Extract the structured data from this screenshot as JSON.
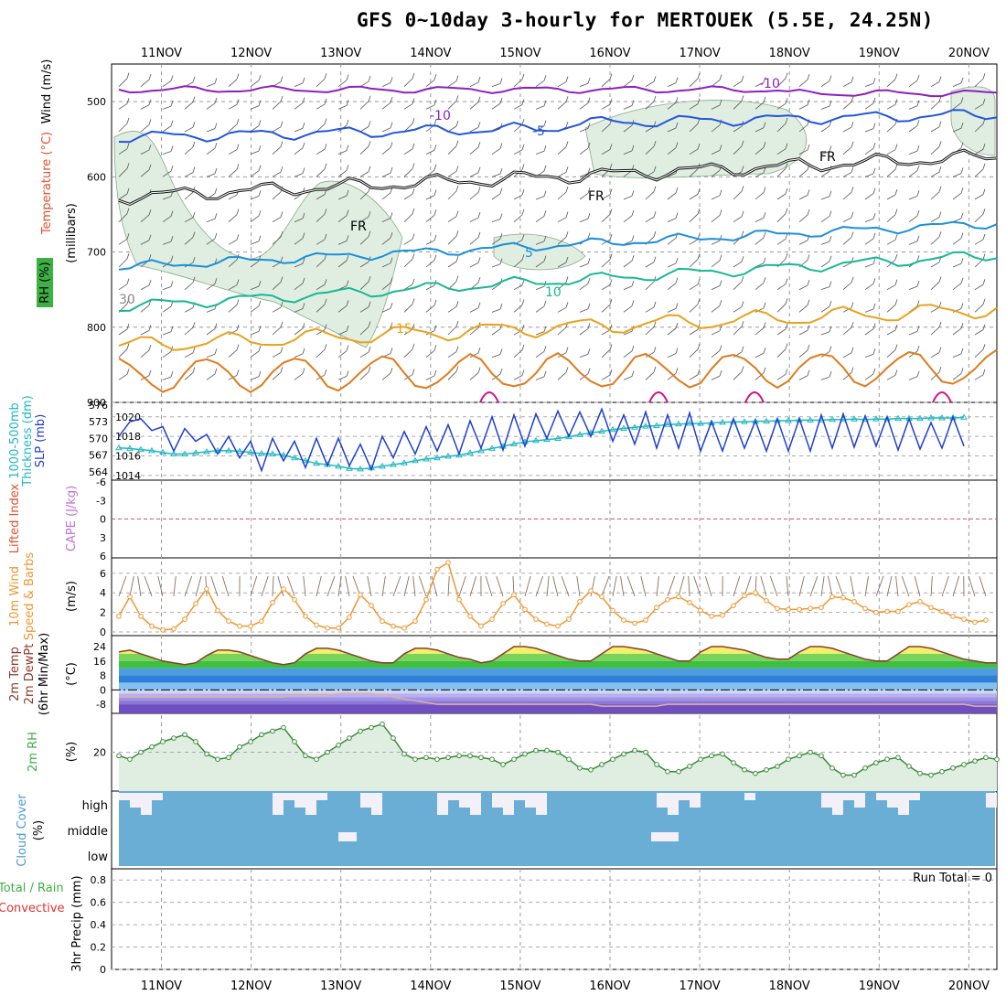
{
  "title": "GFS 0~10day 3-hourly for MERTOUEK (5.5E, 24.25N)",
  "dates": [
    "11NOV",
    "12NOV",
    "13NOV",
    "14NOV",
    "15NOV",
    "16NOV",
    "17NOV",
    "18NOV",
    "19NOV",
    "20NOV"
  ],
  "colors": {
    "purple": "#8c1fc0",
    "blue": "#2255dd",
    "sky": "#1b8fdc",
    "teal": "#16b892",
    "gold": "#e8a21c",
    "orange": "#e07a1a",
    "magenta": "#d1138e",
    "rh_fill": "#dfeee0",
    "slp": "#1f3fcf",
    "thick": "#1fb8c0",
    "wind": "#f0962e",
    "cloud": "#6aaed6"
  },
  "panels": {
    "upper": {
      "label_wind": "Wind (m/s)",
      "label_temp": "Temperature (°C)",
      "label_rh": "RH (%)",
      "label_p": "(millibars)",
      "y_ticks": [
        "500",
        "600",
        "700",
        "800",
        "900"
      ],
      "contour_labels": [
        "-10",
        "-10",
        "-5",
        "-5",
        "FR",
        "FR",
        "FR",
        "5",
        "10",
        "15",
        "30",
        "10"
      ]
    },
    "thick": {
      "label1": "1000-500mb",
      "label2": "Thickness (dm)",
      "label3": "SLP (mb)",
      "left_ticks": [
        "576",
        "573",
        "570",
        "567",
        "564"
      ],
      "right_ticks": [
        "1020",
        "1018",
        "1016",
        "1014"
      ]
    },
    "cape": {
      "label1": "Lifted Index",
      "label2": "CAPE (J/kg)",
      "ticks": [
        "-6",
        "-3",
        "0",
        "3",
        "6"
      ]
    },
    "wind": {
      "label1": "10m Wind",
      "label2": "Speed & Barbs",
      "label3": "(m/s)",
      "ticks": [
        "6",
        "4",
        "2",
        "0"
      ]
    },
    "temp": {
      "label1": "2m Temp",
      "label2": "2m DewPt",
      "label3": "(6hr Min/Max)",
      "label4": "(°C)",
      "ticks": [
        "24",
        "16",
        "8",
        "0",
        "-8"
      ]
    },
    "rh": {
      "label1": "2m RH",
      "label2": "(%)",
      "ticks": [
        "20"
      ]
    },
    "cloud": {
      "label1": "Cloud Cover",
      "label2": "(%)",
      "levels": [
        "high",
        "middle",
        "low"
      ]
    },
    "precip": {
      "label1": "Total / Rain",
      "label2": "Convective",
      "label3": "3hr Precip (mm)",
      "ticks": [
        "0.8",
        "0.6",
        "0.4",
        "0.2",
        "0"
      ],
      "run_total": "Run Total = 0"
    }
  },
  "chart_data": [
    {
      "type": "line",
      "title": "1000-500mb Thickness (dm) and SLP (mb)",
      "series": [
        {
          "name": "SLP (mb)",
          "values": [
            1018.0,
            1019.5,
            1019.8,
            1018.6,
            1019.0,
            1016.5,
            1018.8,
            1017.5,
            1018.2,
            1016.2,
            1018.0,
            1015.8,
            1017.5,
            1014.5,
            1017.8,
            1015.5,
            1017.5,
            1014.8,
            1017.8,
            1015.0,
            1017.8,
            1015.0,
            1017.2,
            1014.6,
            1018.0,
            1015.8,
            1018.5,
            1016.2,
            1019.0,
            1016.5,
            1019.2,
            1016.2,
            1019.6,
            1016.8,
            1020.0,
            1016.6,
            1020.2,
            1017.0,
            1020.3,
            1017.8,
            1020.6,
            1018.0,
            1020.5,
            1018.0,
            1020.8,
            1017.5,
            1020.2,
            1017.2,
            1020.5,
            1016.8,
            1020.2,
            1016.8,
            1020.4,
            1016.5,
            1019.5,
            1016.5,
            1019.8,
            1016.8,
            1019.6,
            1016.5,
            1019.8,
            1016.5,
            1019.8,
            1016.5,
            1020.2,
            1016.8,
            1020.3,
            1016.9,
            1020.1,
            1017.0,
            1020.0,
            1016.6,
            1019.8,
            1016.7,
            1019.4,
            1016.8,
            1020.0,
            1017.0
          ]
        },
        {
          "name": "Thickness (dm)",
          "values": [
            568.3,
            568.2,
            568.0,
            567.8,
            567.5,
            567.2,
            567.2,
            567.4,
            567.6,
            567.8,
            567.8,
            567.7,
            567.5,
            567.3,
            567.2,
            567.0,
            566.5,
            566.0,
            565.5,
            565.3,
            565.0,
            564.6,
            564.5,
            564.7,
            565.0,
            565.3,
            565.6,
            566.0,
            566.3,
            566.5,
            566.8,
            567.0,
            567.4,
            567.8,
            568.2,
            568.6,
            569.0,
            569.4,
            569.6,
            569.8,
            570.0,
            570.3,
            570.7,
            571.0,
            571.3,
            571.6,
            571.8,
            572.0,
            572.2,
            572.3,
            572.5,
            572.6,
            572.7,
            572.7,
            572.8,
            572.9,
            573.0,
            573.0,
            573.1,
            573.1,
            573.2,
            573.2,
            573.3,
            573.3,
            573.3,
            573.4,
            573.4,
            573.5,
            573.4,
            573.5,
            573.5,
            573.6,
            573.6,
            573.6,
            573.7,
            573.7,
            573.7,
            573.8
          ]
        }
      ]
    },
    {
      "type": "line",
      "title": "10m Wind Speed & Barbs (m/s)",
      "series": [
        {
          "name": "Speed",
          "values": [
            1.6,
            3.6,
            1.6,
            0.6,
            0.2,
            0.3,
            1.3,
            2.9,
            4.4,
            2.2,
            1.1,
            0.6,
            0.6,
            1.1,
            3.0,
            4.4,
            3.3,
            1.6,
            0.7,
            0.4,
            0.4,
            1.5,
            3.8,
            2.7,
            1.1,
            0.6,
            0.4,
            1.1,
            3.3,
            6.4,
            7.1,
            3.3,
            1.6,
            0.6,
            1.3,
            2.9,
            3.8,
            2.3,
            1.3,
            0.8,
            0.6,
            1.3,
            3.1,
            4.2,
            3.6,
            2.2,
            1.2,
            0.9,
            1.2,
            2.5,
            3.3,
            3.6,
            3.0,
            2.2,
            1.6,
            1.7,
            2.7,
            3.7,
            4.0,
            3.2,
            2.4,
            2.3,
            2.3,
            2.4,
            2.5,
            3.6,
            3.5,
            3.1,
            2.4,
            2.0,
            2.1,
            2.1,
            2.8,
            3.1,
            2.5,
            2.1,
            1.6,
            1.3,
            1.0,
            1.2
          ]
        }
      ]
    },
    {
      "type": "area",
      "title": "2m Temp / 2m DewPt (°C)",
      "series": [
        {
          "name": "2m Temp",
          "values": [
            21,
            22,
            20,
            18,
            16,
            15,
            14,
            15,
            19,
            22,
            22,
            21,
            19,
            17,
            15,
            14,
            15,
            20,
            23,
            23,
            22,
            20,
            18,
            16,
            15,
            15,
            20,
            23,
            23,
            22,
            20,
            18,
            17,
            15,
            16,
            20,
            24,
            24,
            23,
            21,
            19,
            17,
            16,
            16,
            20,
            24,
            24,
            23,
            22,
            20,
            18,
            16,
            16,
            21,
            24,
            24,
            23,
            22,
            20,
            18,
            17,
            17,
            21,
            24,
            24,
            23,
            21,
            19,
            17,
            16,
            16,
            20,
            24,
            24,
            23,
            21,
            19,
            17,
            16,
            15,
            15
          ]
        },
        {
          "name": "2m DewPt",
          "values": [
            -4,
            -4,
            -4,
            -4,
            -4,
            -4,
            -4,
            -4,
            -4,
            -4,
            -4,
            -4,
            -4,
            -4,
            -4,
            -4,
            -3,
            -3,
            -3,
            -3,
            -2,
            -2,
            -2,
            -2,
            -3,
            -4,
            -5,
            -6,
            -7,
            -8,
            -8,
            -8,
            -8,
            -8,
            -8,
            -8,
            -8,
            -8,
            -8,
            -8,
            -8,
            -8,
            -8,
            -8,
            -9,
            -9,
            -9,
            -9,
            -9,
            -9,
            -8,
            -8,
            -8,
            -8,
            -8,
            -8,
            -8,
            -8,
            -8,
            -8,
            -8,
            -8,
            -8,
            -8,
            -8,
            -8,
            -8,
            -8,
            -8,
            -8,
            -8,
            -8,
            -8,
            -8,
            -8,
            -8,
            -8,
            -8,
            -9,
            -9,
            -9
          ]
        }
      ]
    },
    {
      "type": "area",
      "title": "2m RH (%)",
      "series": [
        {
          "name": "2m RH",
          "values": [
            18,
            16,
            20,
            23,
            26,
            28,
            30,
            26,
            19,
            16,
            17,
            23,
            26,
            30,
            32,
            34,
            26,
            18,
            16,
            20,
            24,
            28,
            32,
            34,
            36,
            28,
            19,
            16,
            17,
            16,
            17,
            18,
            18,
            17,
            16,
            13,
            16,
            19,
            21,
            21,
            20,
            16,
            11,
            10,
            13,
            16,
            19,
            21,
            20,
            13,
            9,
            9,
            12,
            16,
            18,
            19,
            14,
            10,
            8,
            10,
            12,
            16,
            18,
            20,
            18,
            11,
            7,
            7,
            11,
            14,
            16,
            17,
            12,
            8,
            7,
            9,
            11,
            13,
            15,
            17,
            16
          ]
        }
      ]
    },
    {
      "type": "bar",
      "title": "3hr Precip (mm)",
      "ylim": [
        0,
        0.9
      ],
      "series": [
        {
          "name": "Total / Rain",
          "values": [
            0,
            0,
            0,
            0,
            0,
            0,
            0,
            0,
            0,
            0,
            0,
            0,
            0,
            0,
            0,
            0,
            0,
            0,
            0,
            0,
            0,
            0,
            0,
            0,
            0,
            0,
            0,
            0,
            0,
            0,
            0,
            0,
            0,
            0,
            0,
            0,
            0,
            0,
            0,
            0,
            0,
            0,
            0,
            0,
            0,
            0,
            0,
            0,
            0,
            0,
            0,
            0,
            0,
            0,
            0,
            0,
            0,
            0,
            0,
            0,
            0,
            0,
            0,
            0,
            0,
            0,
            0,
            0,
            0,
            0,
            0,
            0,
            0,
            0,
            0,
            0,
            0,
            0,
            0,
            0,
            0
          ]
        }
      ]
    }
  ]
}
